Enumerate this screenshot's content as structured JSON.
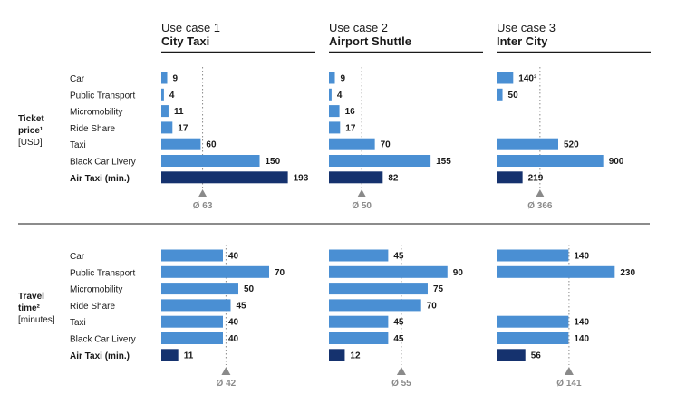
{
  "colors": {
    "bar": "#4a8fd3",
    "highlight": "#15326e",
    "text": "#1a1a1a",
    "avg": "#8a8a8a",
    "divider": "#1a1a1a"
  },
  "use_cases": [
    {
      "line1": "Use case 1",
      "line2": "City Taxi"
    },
    {
      "line1": "Use case 2",
      "line2": "Airport Shuttle"
    },
    {
      "line1": "Use case 3",
      "line2": "Inter City"
    }
  ],
  "categories": [
    "Car",
    "Public Transport",
    "Micromobility",
    "Ride Share",
    "Taxi",
    "Black Car Livery",
    "Air Taxi (min.)"
  ],
  "highlight_category": "Air Taxi (min.)",
  "chart_data": [
    {
      "type": "bar",
      "metric": "ticket_price",
      "ylabel_lines": [
        "Ticket",
        "price¹",
        "[USD]"
      ],
      "panels": [
        {
          "values": [
            9,
            4,
            11,
            17,
            60,
            150,
            193
          ],
          "labels": [
            "9",
            "4",
            "11",
            "17",
            "60",
            "150",
            "193"
          ],
          "average": 63,
          "average_label": "Ø 63",
          "xmax": 235
        },
        {
          "values": [
            9,
            4,
            16,
            17,
            70,
            155,
            82
          ],
          "labels": [
            "9",
            "4",
            "16",
            "17",
            "70",
            "155",
            "82"
          ],
          "average": 50,
          "average_label": "Ø 50",
          "xmax": 235
        },
        {
          "values": [
            140,
            50,
            null,
            null,
            520,
            900,
            219
          ],
          "labels": [
            "140³",
            "50",
            "",
            "",
            "520",
            "900",
            "219"
          ],
          "average": 366,
          "average_label": "Ø 366",
          "xmax": 1300
        }
      ]
    },
    {
      "type": "bar",
      "metric": "travel_time",
      "ylabel_lines": [
        "Travel",
        "time²",
        "[minutes]"
      ],
      "panels": [
        {
          "values": [
            40,
            70,
            50,
            45,
            40,
            40,
            11
          ],
          "labels": [
            "40",
            "70",
            "50",
            "45",
            "40",
            "40",
            "11"
          ],
          "average": 42,
          "average_label": "Ø 42",
          "xmax": 100
        },
        {
          "values": [
            45,
            90,
            75,
            70,
            45,
            45,
            12
          ],
          "labels": [
            "45",
            "90",
            "75",
            "70",
            "45",
            "45",
            "12"
          ],
          "average": 55,
          "average_label": "Ø 55",
          "xmax": 117
        },
        {
          "values": [
            140,
            230,
            null,
            null,
            140,
            140,
            56
          ],
          "labels": [
            "140",
            "230",
            "",
            "",
            "140",
            "140",
            "56"
          ],
          "average": 141,
          "average_label": "Ø 141",
          "xmax": 300
        }
      ]
    }
  ]
}
